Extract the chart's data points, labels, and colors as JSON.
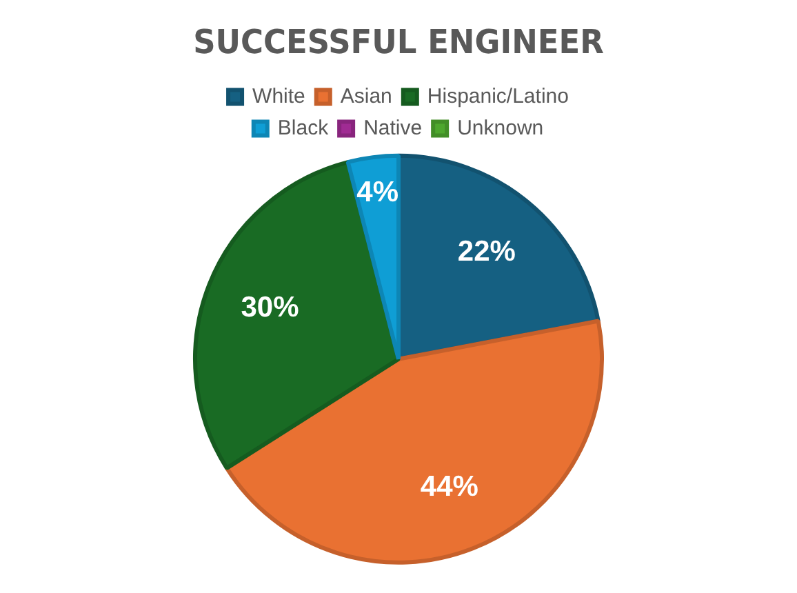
{
  "chart_data": {
    "type": "pie",
    "title": "SUCCESSFUL ENGINEER",
    "categories": [
      "White",
      "Asian",
      "Hispanic/Latino",
      "Black",
      "Native",
      "Unknown"
    ],
    "values": [
      22,
      44,
      30,
      4,
      0,
      0
    ],
    "colors": [
      "#156082",
      "#e97132",
      "#196b24",
      "#0f9ed5",
      "#a02b93",
      "#4ea72e"
    ],
    "value_labels": [
      "22%",
      "44%",
      "30%",
      "4%",
      null,
      null
    ],
    "legend": "top"
  }
}
